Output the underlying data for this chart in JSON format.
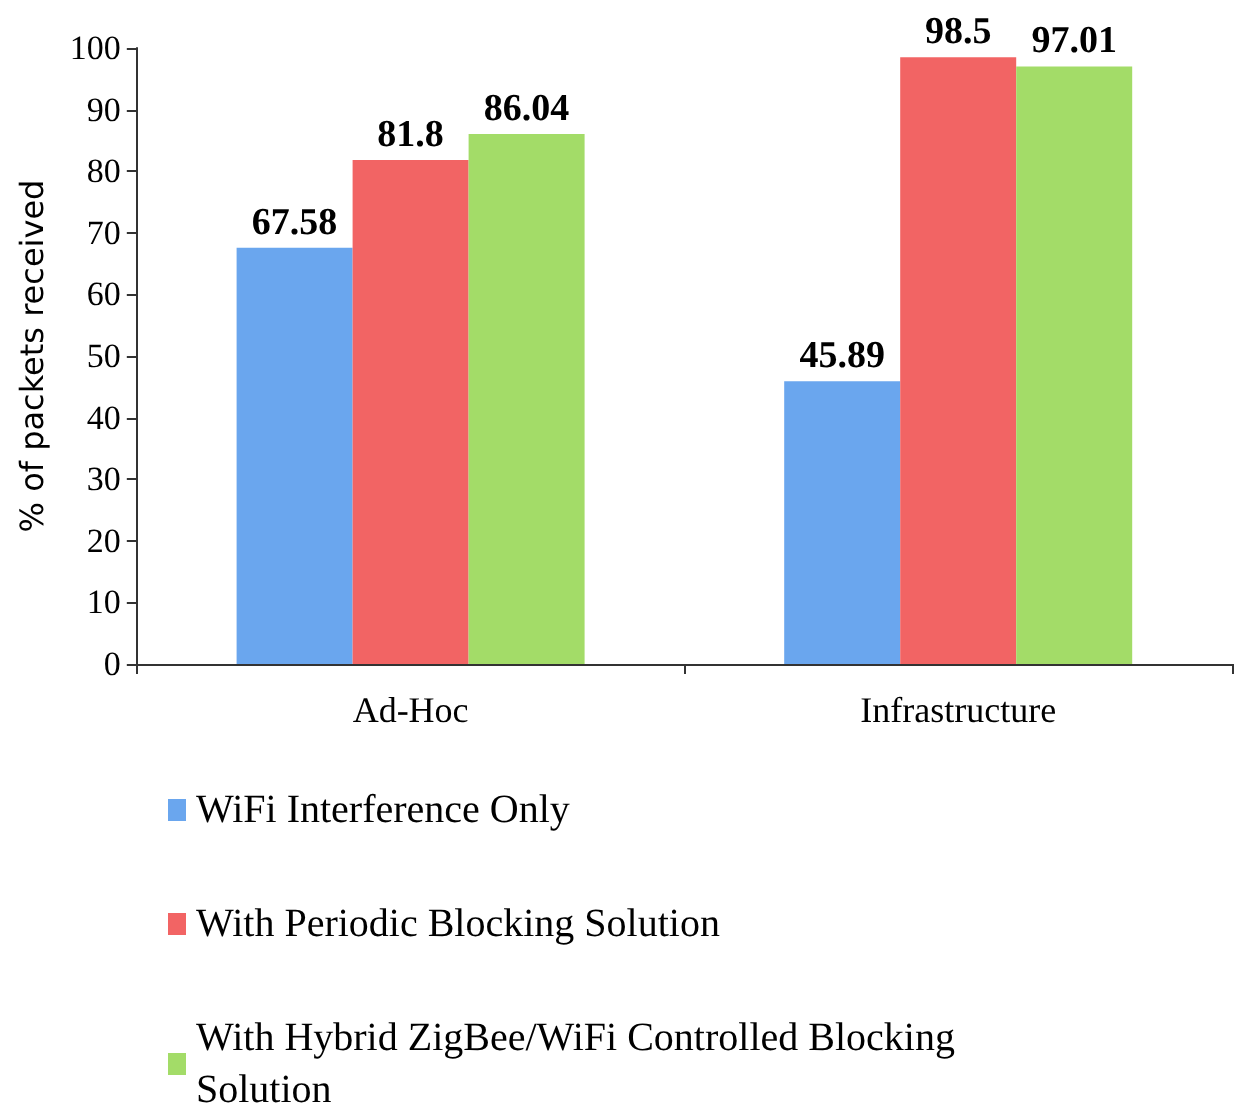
{
  "chart_data": {
    "type": "bar",
    "ylabel": "% of packets received",
    "categories": [
      "Ad-Hoc",
      "Infrastructure"
    ],
    "series": [
      {
        "name": "WiFi Interference Only",
        "color": "#6aa6ee",
        "values": [
          67.58,
          45.89
        ]
      },
      {
        "name": "With Periodic Blocking Solution",
        "color": "#f26464",
        "values": [
          81.8,
          98.5
        ]
      },
      {
        "name": "With Hybrid ZigBee/WiFi Controlled Blocking Solution",
        "color": "#a3dc68",
        "values": [
          86.04,
          97.01
        ]
      }
    ],
    "ylim": [
      0,
      100
    ],
    "yticks": [
      0,
      10,
      20,
      30,
      40,
      50,
      60,
      70,
      80,
      90,
      100
    ],
    "data_labels": true,
    "grid": false,
    "legend": "bottom"
  }
}
